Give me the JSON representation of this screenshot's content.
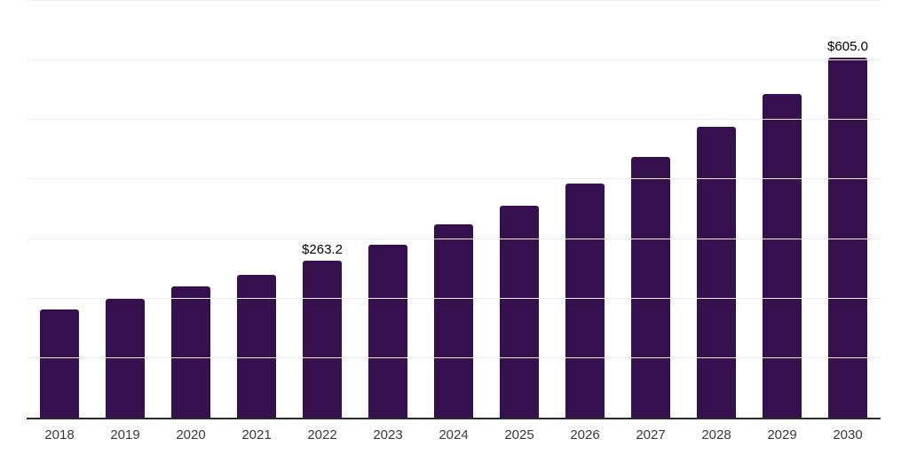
{
  "chart": {
    "background": "#ffffff",
    "colors": {
      "bar": "#36104E",
      "gridline": "#ededed",
      "axis_line": "#2b2b2b",
      "tick_label": "#3a3a3a",
      "data_label": "#000000"
    }
  },
  "chart_data": {
    "type": "bar",
    "title": "",
    "xlabel": "",
    "ylabel": "",
    "categories": [
      "2018",
      "2019",
      "2020",
      "2021",
      "2022",
      "2023",
      "2024",
      "2025",
      "2026",
      "2027",
      "2028",
      "2029",
      "2030"
    ],
    "values": [
      181.7,
      199.6,
      220.4,
      239.8,
      263.2,
      290.4,
      324.7,
      356.0,
      393.2,
      437.9,
      488.5,
      543.6,
      605.0
    ],
    "data_labels": {
      "2022": "$263.2",
      "2030": "$605.0"
    },
    "ylim": [
      0,
      700
    ],
    "gridline_step": 100,
    "grid": true,
    "y_axis_labels_visible": false,
    "legend_position": "none"
  }
}
